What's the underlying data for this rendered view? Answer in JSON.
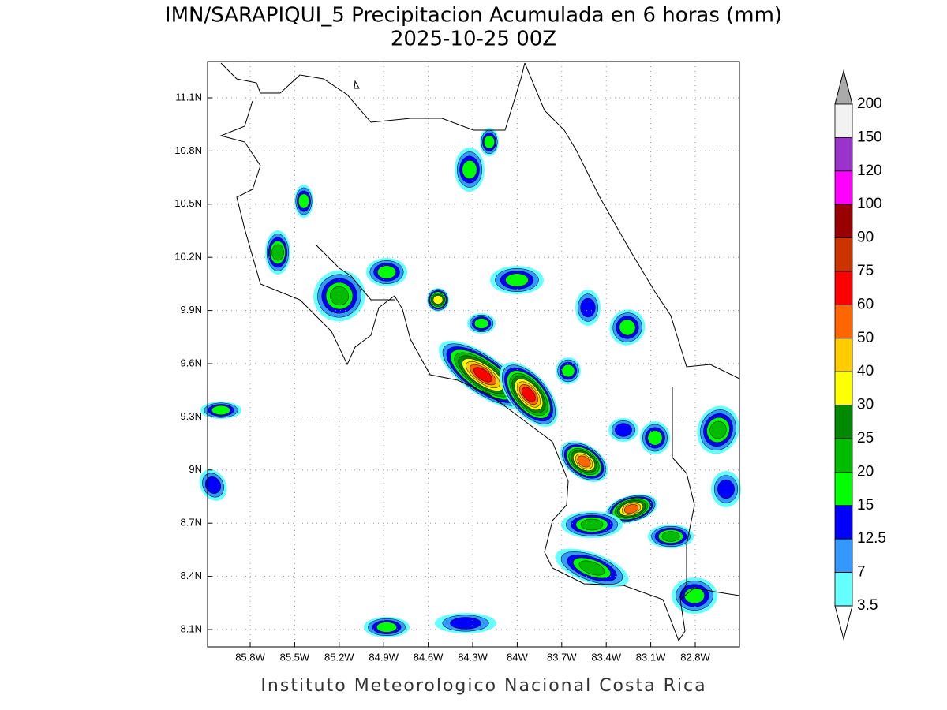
{
  "header": {
    "title": "IMN/SARAPIQUI_5 Precipitacion Acumulada en 6 horas (mm)",
    "subtitle": "2025-10-25 00Z"
  },
  "map": {
    "lon_labels": [
      "85.8W",
      "85.5W",
      "85.2W",
      "84.9W",
      "84.6W",
      "84.3W",
      "84W",
      "83.7W",
      "83.4W",
      "83.1W",
      "82.8W"
    ],
    "lat_labels": [
      "11.1N",
      "10.8N",
      "10.5N",
      "10.2N",
      "9.9N",
      "9.6N",
      "9.3N",
      "9N",
      "8.7N",
      "8.4N",
      "8.1N"
    ]
  },
  "colorbar": {
    "levels": [
      200,
      150,
      120,
      100,
      90,
      75,
      60,
      50,
      40,
      30,
      25,
      20,
      15,
      12.5,
      7,
      3.5
    ],
    "colors": [
      "#f2f2f2",
      "#9933cc",
      "#ff00ff",
      "#990000",
      "#cc3300",
      "#ff0000",
      "#ff6600",
      "#ffcc00",
      "#ffff00",
      "#008800",
      "#00bb00",
      "#00ff00",
      "#0000ff",
      "#3399ff",
      "#66ffff"
    ],
    "over_color": "#aaaaaa",
    "under_color": "#ffffff"
  },
  "footer": "Instituto Meteorologico Nacional Costa Rica"
}
